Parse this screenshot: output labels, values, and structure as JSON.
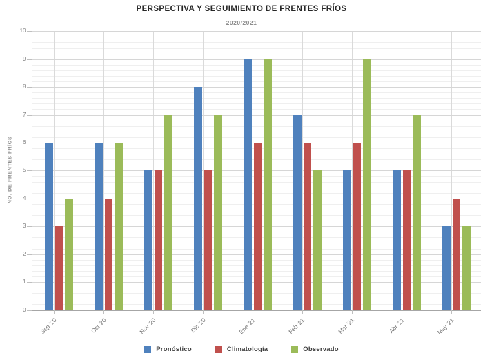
{
  "title": "PERSPECTIVA Y SEGUIMIENTO DE FRENTES FRÍOS",
  "subtitle": "2020/2021",
  "chart_data": {
    "type": "bar",
    "title": "PERSPECTIVA Y SEGUIMIENTO DE FRENTES FRÍOS",
    "subtitle": "2020/2021",
    "xlabel": "",
    "ylabel": "NO. DE FRENTES FRÍOS",
    "ylim": [
      0,
      10
    ],
    "y_major_step": 1,
    "y_minor_step": 0.2,
    "y_tick_labels": [
      "0",
      "1",
      "2",
      "3",
      "4",
      "5",
      "6",
      "7",
      "8",
      "9",
      "10"
    ],
    "grid": true,
    "legend_position": "bottom",
    "categories": [
      "Sep '20",
      "Oct '20",
      "Nov '20",
      "Dic '20",
      "Ene '21",
      "Feb '21",
      "Mar '21",
      "Abr '21",
      "May '21"
    ],
    "series": [
      {
        "name": "Pronóstico",
        "color": "#4F81BD",
        "values": [
          6,
          6,
          5,
          8,
          9,
          7,
          5,
          5,
          3
        ]
      },
      {
        "name": "Climatología",
        "color": "#C0504D",
        "values": [
          3,
          4,
          5,
          5,
          6,
          6,
          6,
          5,
          4
        ]
      },
      {
        "name": "Observado",
        "color": "#9BBB59",
        "values": [
          4,
          6,
          7,
          7,
          9,
          5,
          9,
          7,
          3
        ]
      }
    ]
  },
  "colors": {
    "background": "#ffffff",
    "title_text": "#262626",
    "subtitle_text": "#8c8c8c",
    "tick_text": "#808080",
    "major_grid": "#d6d6d6",
    "minor_grid": "#efefef",
    "axis_line": "#a6a6a6"
  }
}
